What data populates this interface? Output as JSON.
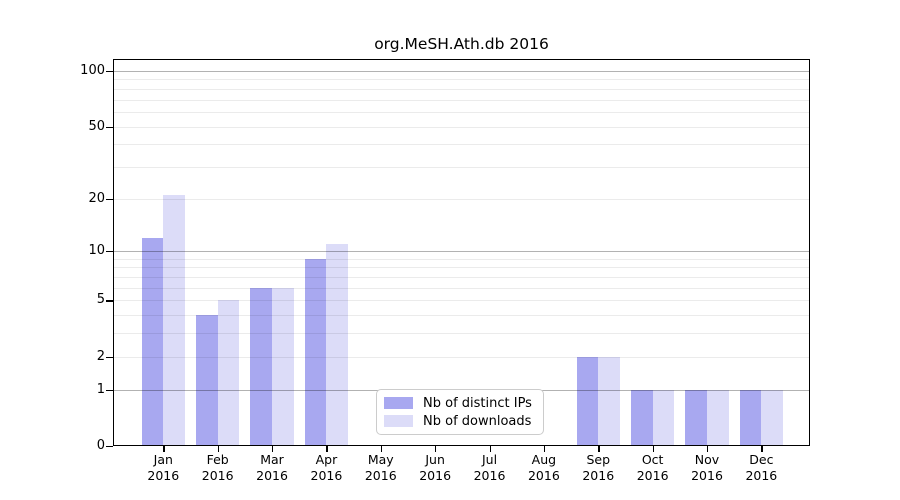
{
  "chart_data": {
    "type": "bar",
    "title": "org.MeSH.Ath.db 2016",
    "categories": [
      "Jan",
      "Feb",
      "Mar",
      "Apr",
      "May",
      "Jun",
      "Jul",
      "Aug",
      "Sep",
      "Oct",
      "Nov",
      "Dec"
    ],
    "year_label": "2016",
    "series": [
      {
        "name": "Nb of distinct IPs",
        "color": "#a8a8f0",
        "values": [
          12,
          4,
          6,
          9,
          0,
          0,
          0,
          0,
          2,
          1,
          1,
          1
        ]
      },
      {
        "name": "Nb of downloads",
        "color": "#dcdcf8",
        "values": [
          21,
          5,
          6,
          11,
          0,
          0,
          0,
          0,
          2,
          1,
          1,
          1
        ]
      }
    ],
    "y_axis": {
      "scale": "log1p",
      "ticks": [
        0,
        1,
        2,
        5,
        10,
        20,
        50,
        100
      ],
      "major_gridlines": [
        1,
        10,
        100
      ],
      "minor_gridlines": [
        2,
        3,
        4,
        5,
        6,
        7,
        8,
        9,
        20,
        30,
        40,
        50,
        60,
        70,
        80,
        90
      ],
      "ylim": [
        0,
        115
      ]
    },
    "xlabel": "",
    "ylabel": "",
    "grid": true,
    "legend_position": "bottom-center"
  }
}
